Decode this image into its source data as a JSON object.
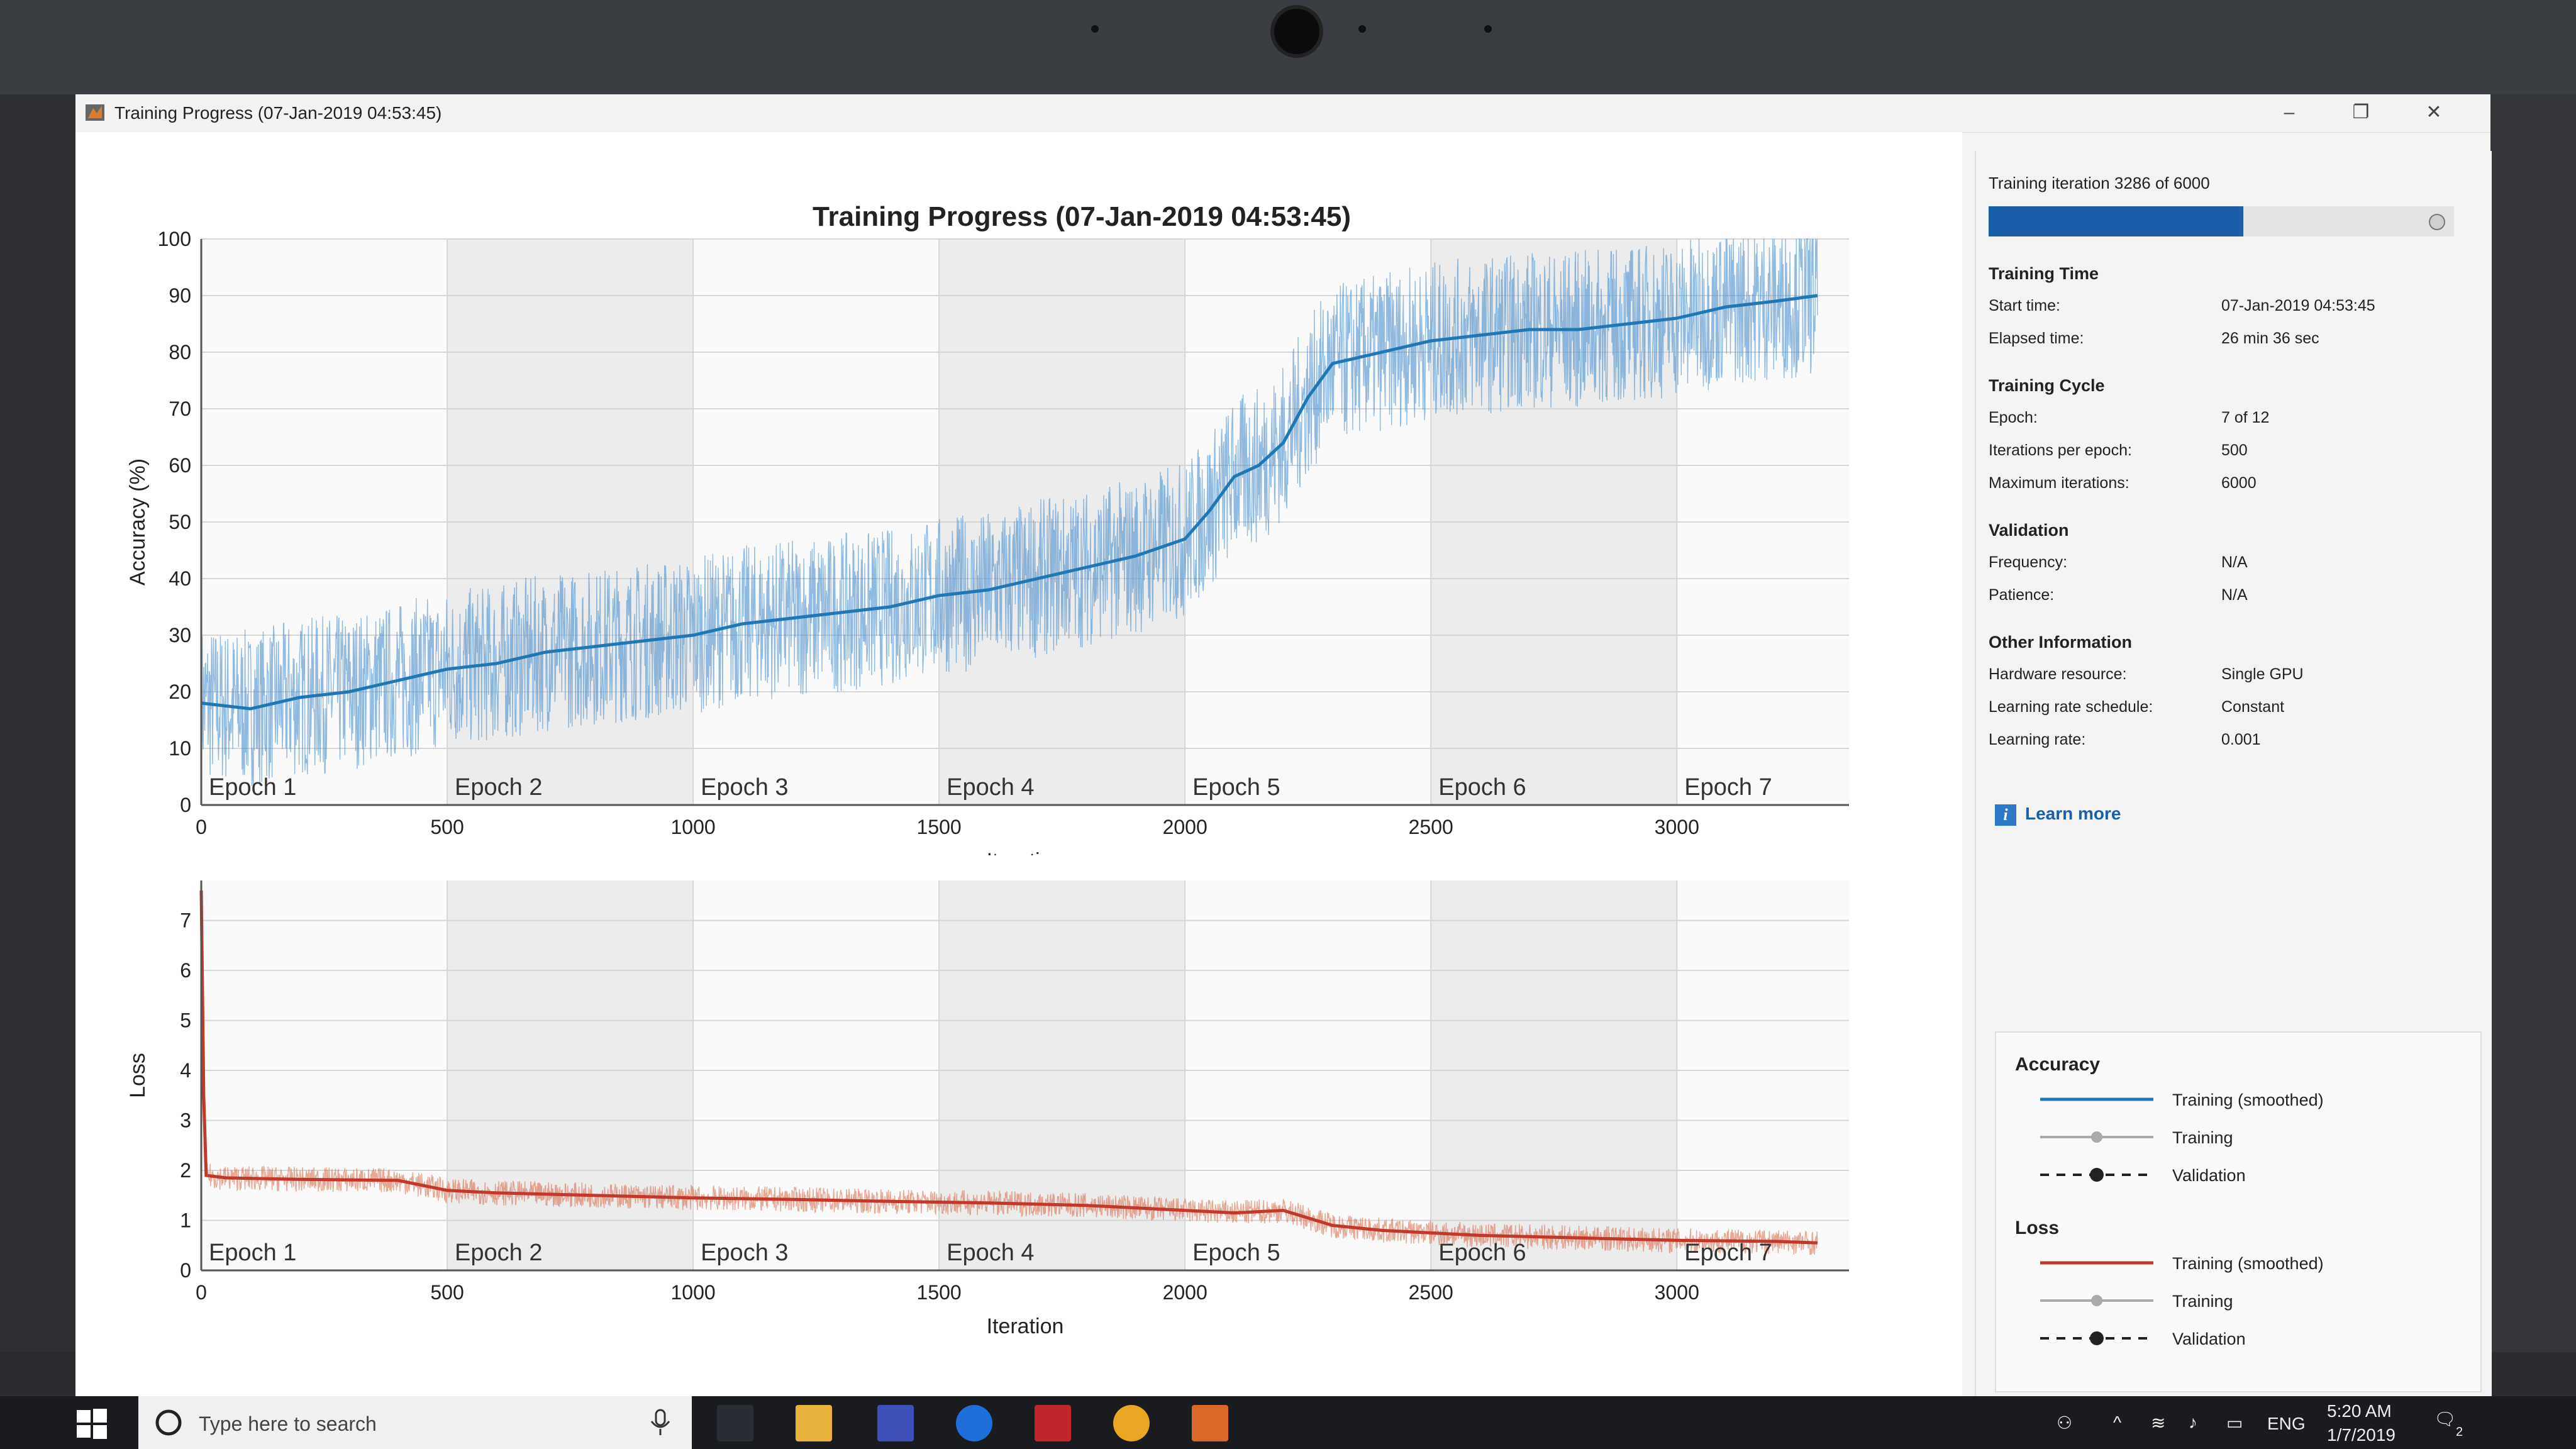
{
  "window": {
    "title": "Training Progress (07-Jan-2019 04:53:45)",
    "minimize": "–",
    "maximize": "❐",
    "close": "✕"
  },
  "plot": {
    "title": "Training Progress (07-Jan-2019 04:53:45)"
  },
  "chart_data": [
    {
      "type": "line",
      "ylabel": "Accuracy (%)",
      "xlabel": "Iteration",
      "xlim": [
        0,
        3350
      ],
      "ylim": [
        0,
        100
      ],
      "x_ticks": [
        0,
        500,
        1000,
        1500,
        2000,
        2500,
        3000
      ],
      "y_ticks": [
        0,
        10,
        20,
        30,
        40,
        50,
        60,
        70,
        80,
        90,
        100
      ],
      "grid": true,
      "epochs": [
        "Epoch 1",
        "Epoch 2",
        "Epoch 3",
        "Epoch 4",
        "Epoch 5",
        "Epoch 6",
        "Epoch 7"
      ],
      "series": [
        {
          "name": "Training (smoothed)",
          "color": "#1f77b4",
          "x": [
            0,
            100,
            200,
            300,
            400,
            500,
            600,
            700,
            800,
            900,
            1000,
            1100,
            1200,
            1300,
            1400,
            1500,
            1600,
            1700,
            1800,
            1900,
            2000,
            2050,
            2100,
            2150,
            2200,
            2250,
            2300,
            2400,
            2500,
            2600,
            2700,
            2800,
            2900,
            3000,
            3100,
            3200,
            3286
          ],
          "y": [
            18,
            17,
            19,
            20,
            22,
            24,
            25,
            27,
            28,
            29,
            30,
            32,
            33,
            34,
            35,
            37,
            38,
            40,
            42,
            44,
            47,
            52,
            58,
            60,
            64,
            72,
            78,
            80,
            82,
            83,
            84,
            84,
            85,
            86,
            88,
            89,
            90
          ]
        }
      ]
    },
    {
      "type": "line",
      "ylabel": "Loss",
      "xlabel": "Iteration",
      "xlim": [
        0,
        3350
      ],
      "ylim": [
        0,
        7.8
      ],
      "x_ticks": [
        0,
        500,
        1000,
        1500,
        2000,
        2500,
        3000
      ],
      "y_ticks": [
        0,
        1,
        2,
        3,
        4,
        5,
        6,
        7
      ],
      "grid": true,
      "epochs": [
        "Epoch 1",
        "Epoch 2",
        "Epoch 3",
        "Epoch 4",
        "Epoch 5",
        "Epoch 6",
        "Epoch 7"
      ],
      "series": [
        {
          "name": "Training (smoothed)",
          "color": "#c0392b",
          "x": [
            0,
            5,
            10,
            50,
            200,
            400,
            500,
            600,
            800,
            1000,
            1200,
            1400,
            1600,
            1800,
            2000,
            2100,
            2200,
            2300,
            2400,
            2600,
            2800,
            3000,
            3200,
            3286
          ],
          "y": [
            7.6,
            3.5,
            1.9,
            1.85,
            1.82,
            1.8,
            1.6,
            1.55,
            1.5,
            1.45,
            1.42,
            1.38,
            1.35,
            1.3,
            1.2,
            1.15,
            1.2,
            0.9,
            0.8,
            0.7,
            0.65,
            0.6,
            0.58,
            0.55
          ]
        }
      ]
    }
  ],
  "side_panel": {
    "iteration_text": "Training iteration 3286 of 6000",
    "progress_fraction": 0.5477,
    "sections": [
      {
        "heading": "Training Time",
        "rows": [
          {
            "label": "Start time:",
            "value": "07-Jan-2019 04:53:45"
          },
          {
            "label": "Elapsed time:",
            "value": "26 min 36 sec"
          }
        ]
      },
      {
        "heading": "Training Cycle",
        "rows": [
          {
            "label": "Epoch:",
            "value": "7 of 12"
          },
          {
            "label": "Iterations per epoch:",
            "value": "500"
          },
          {
            "label": "Maximum iterations:",
            "value": "6000"
          }
        ]
      },
      {
        "heading": "Validation",
        "rows": [
          {
            "label": "Frequency:",
            "value": "N/A"
          },
          {
            "label": "Patience:",
            "value": "N/A"
          }
        ]
      },
      {
        "heading": "Other Information",
        "rows": [
          {
            "label": "Hardware resource:",
            "value": "Single GPU"
          },
          {
            "label": "Learning rate schedule:",
            "value": "Constant"
          },
          {
            "label": "Learning rate:",
            "value": "0.001"
          }
        ]
      }
    ],
    "learn_more": "Learn more"
  },
  "legend": {
    "accuracy_heading": "Accuracy",
    "loss_heading": "Loss",
    "accuracy_items": [
      "Training (smoothed)",
      "Training",
      "Validation"
    ],
    "loss_items": [
      "Training (smoothed)",
      "Training",
      "Validation"
    ],
    "accuracy_color": "#1f77b4",
    "loss_color": "#c0392b"
  },
  "taskbar": {
    "search_placeholder": "Type here to search",
    "language": "ENG",
    "time": "5:20 AM",
    "date": "1/7/2019",
    "notification_count": "2"
  }
}
